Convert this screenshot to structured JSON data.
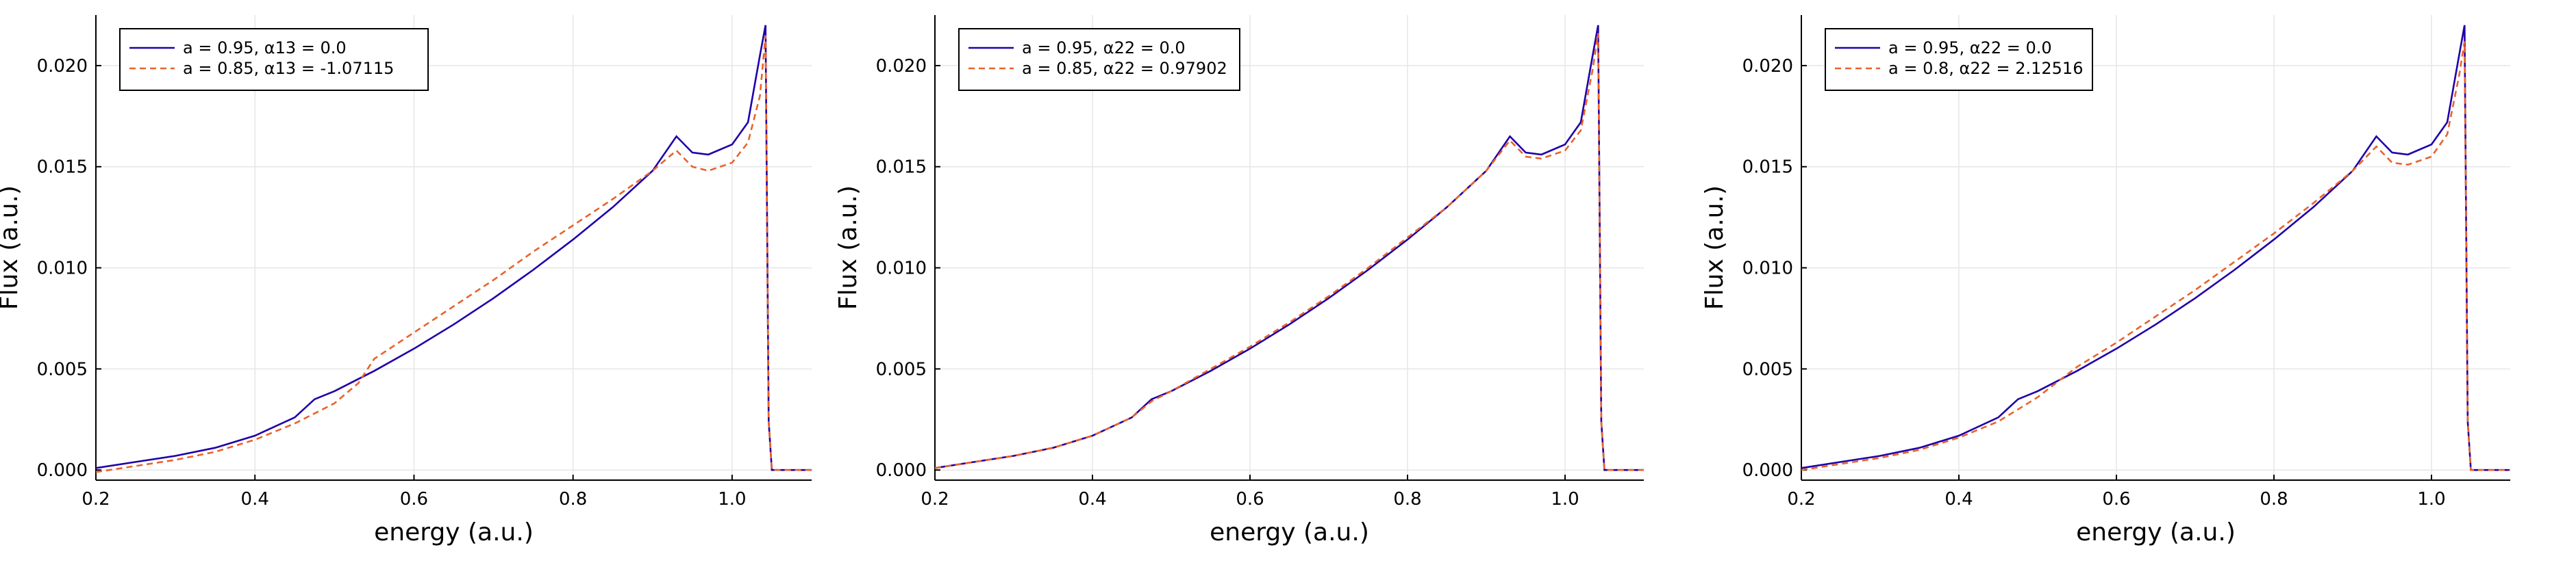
{
  "chart_data": [
    {
      "type": "line",
      "xlabel": "energy (a.u.)",
      "ylabel": "Flux (a.u.)",
      "xlim": [
        0.2,
        1.1
      ],
      "ylim": [
        -0.0005,
        0.0225
      ],
      "xticks": [
        "0.2",
        "0.4",
        "0.6",
        "0.8",
        "1.0"
      ],
      "yticks": [
        "0.000",
        "0.005",
        "0.010",
        "0.015",
        "0.020"
      ],
      "grid": true,
      "legend_position": "top-left",
      "series": [
        {
          "name": "a = 0.95, α13 = 0.0",
          "color": "#1f00a8",
          "style": "solid",
          "points": [
            [
              0.2,
              0.0001
            ],
            [
              0.25,
              0.0004
            ],
            [
              0.3,
              0.0007
            ],
            [
              0.35,
              0.0011
            ],
            [
              0.4,
              0.0017
            ],
            [
              0.45,
              0.0026
            ],
            [
              0.475,
              0.0035
            ],
            [
              0.5,
              0.0039
            ],
            [
              0.55,
              0.0049
            ],
            [
              0.6,
              0.006
            ],
            [
              0.65,
              0.0072
            ],
            [
              0.7,
              0.0085
            ],
            [
              0.75,
              0.0099
            ],
            [
              0.8,
              0.0114
            ],
            [
              0.85,
              0.013
            ],
            [
              0.9,
              0.0148
            ],
            [
              0.93,
              0.0165
            ],
            [
              0.95,
              0.0157
            ],
            [
              0.97,
              0.0156
            ],
            [
              1.0,
              0.0161
            ],
            [
              1.02,
              0.0172
            ],
            [
              1.035,
              0.0205
            ],
            [
              1.042,
              0.022
            ],
            [
              1.046,
              0.0024
            ],
            [
              1.05,
              0.0
            ],
            [
              1.1,
              0.0
            ]
          ]
        },
        {
          "name": "a = 0.85, α13 = -1.07115",
          "color": "#e8632b",
          "style": "dashed",
          "points": [
            [
              0.2,
              -0.0001
            ],
            [
              0.25,
              0.0002
            ],
            [
              0.3,
              0.0005
            ],
            [
              0.35,
              0.0009
            ],
            [
              0.4,
              0.0015
            ],
            [
              0.45,
              0.0023
            ],
            [
              0.5,
              0.0033
            ],
            [
              0.53,
              0.0043
            ],
            [
              0.55,
              0.0055
            ],
            [
              0.6,
              0.0068
            ],
            [
              0.65,
              0.0081
            ],
            [
              0.7,
              0.0094
            ],
            [
              0.75,
              0.0108
            ],
            [
              0.8,
              0.0121
            ],
            [
              0.85,
              0.0134
            ],
            [
              0.9,
              0.0148
            ],
            [
              0.93,
              0.0158
            ],
            [
              0.95,
              0.015
            ],
            [
              0.97,
              0.0148
            ],
            [
              1.0,
              0.0152
            ],
            [
              1.02,
              0.0162
            ],
            [
              1.035,
              0.0185
            ],
            [
              1.042,
              0.0215
            ],
            [
              1.046,
              0.0024
            ],
            [
              1.05,
              0.0
            ],
            [
              1.1,
              0.0
            ]
          ]
        }
      ]
    },
    {
      "type": "line",
      "xlabel": "energy (a.u.)",
      "ylabel": "Flux (a.u.)",
      "xlim": [
        0.2,
        1.1
      ],
      "ylim": [
        -0.0005,
        0.0225
      ],
      "xticks": [
        "0.2",
        "0.4",
        "0.6",
        "0.8",
        "1.0"
      ],
      "yticks": [
        "0.000",
        "0.005",
        "0.010",
        "0.015",
        "0.020"
      ],
      "grid": true,
      "legend_position": "top-left",
      "series": [
        {
          "name": "a = 0.95, α22 = 0.0",
          "color": "#1f00a8",
          "style": "solid",
          "points": [
            [
              0.2,
              0.0001
            ],
            [
              0.25,
              0.0004
            ],
            [
              0.3,
              0.0007
            ],
            [
              0.35,
              0.0011
            ],
            [
              0.4,
              0.0017
            ],
            [
              0.45,
              0.0026
            ],
            [
              0.475,
              0.0035
            ],
            [
              0.5,
              0.0039
            ],
            [
              0.55,
              0.0049
            ],
            [
              0.6,
              0.006
            ],
            [
              0.65,
              0.0072
            ],
            [
              0.7,
              0.0085
            ],
            [
              0.75,
              0.0099
            ],
            [
              0.8,
              0.0114
            ],
            [
              0.85,
              0.013
            ],
            [
              0.9,
              0.0148
            ],
            [
              0.93,
              0.0165
            ],
            [
              0.95,
              0.0157
            ],
            [
              0.97,
              0.0156
            ],
            [
              1.0,
              0.0161
            ],
            [
              1.02,
              0.0172
            ],
            [
              1.035,
              0.0205
            ],
            [
              1.042,
              0.022
            ],
            [
              1.046,
              0.0024
            ],
            [
              1.05,
              0.0
            ],
            [
              1.1,
              0.0
            ]
          ]
        },
        {
          "name": "a = 0.85, α22 = 0.97902",
          "color": "#e8632b",
          "style": "dashed",
          "points": [
            [
              0.2,
              0.0001
            ],
            [
              0.25,
              0.0004
            ],
            [
              0.3,
              0.0007
            ],
            [
              0.35,
              0.0011
            ],
            [
              0.4,
              0.0017
            ],
            [
              0.45,
              0.0026
            ],
            [
              0.475,
              0.0034
            ],
            [
              0.5,
              0.0039
            ],
            [
              0.55,
              0.005
            ],
            [
              0.6,
              0.0061
            ],
            [
              0.65,
              0.0073
            ],
            [
              0.7,
              0.0086
            ],
            [
              0.75,
              0.01
            ],
            [
              0.8,
              0.0115
            ],
            [
              0.85,
              0.013
            ],
            [
              0.9,
              0.0148
            ],
            [
              0.93,
              0.0163
            ],
            [
              0.95,
              0.0155
            ],
            [
              0.97,
              0.0154
            ],
            [
              1.0,
              0.0158
            ],
            [
              1.02,
              0.0168
            ],
            [
              1.035,
              0.0198
            ],
            [
              1.042,
              0.0216
            ],
            [
              1.046,
              0.0024
            ],
            [
              1.05,
              0.0
            ],
            [
              1.1,
              0.0
            ]
          ]
        }
      ]
    },
    {
      "type": "line",
      "xlabel": "energy (a.u.)",
      "ylabel": "Flux (a.u.)",
      "xlim": [
        0.2,
        1.1
      ],
      "ylim": [
        -0.0005,
        0.0225
      ],
      "xticks": [
        "0.2",
        "0.4",
        "0.6",
        "0.8",
        "1.0"
      ],
      "yticks": [
        "0.000",
        "0.005",
        "0.010",
        "0.015",
        "0.020"
      ],
      "grid": true,
      "legend_position": "top-left",
      "series": [
        {
          "name": "a = 0.95, α22 = 0.0",
          "color": "#1f00a8",
          "style": "solid",
          "points": [
            [
              0.2,
              0.0001
            ],
            [
              0.25,
              0.0004
            ],
            [
              0.3,
              0.0007
            ],
            [
              0.35,
              0.0011
            ],
            [
              0.4,
              0.0017
            ],
            [
              0.45,
              0.0026
            ],
            [
              0.475,
              0.0035
            ],
            [
              0.5,
              0.0039
            ],
            [
              0.55,
              0.0049
            ],
            [
              0.6,
              0.006
            ],
            [
              0.65,
              0.0072
            ],
            [
              0.7,
              0.0085
            ],
            [
              0.75,
              0.0099
            ],
            [
              0.8,
              0.0114
            ],
            [
              0.85,
              0.013
            ],
            [
              0.9,
              0.0148
            ],
            [
              0.93,
              0.0165
            ],
            [
              0.95,
              0.0157
            ],
            [
              0.97,
              0.0156
            ],
            [
              1.0,
              0.0161
            ],
            [
              1.02,
              0.0172
            ],
            [
              1.035,
              0.0205
            ],
            [
              1.042,
              0.022
            ],
            [
              1.046,
              0.0024
            ],
            [
              1.05,
              0.0
            ],
            [
              1.1,
              0.0
            ]
          ]
        },
        {
          "name": "a = 0.8, α22 = 2.12516",
          "color": "#e8632b",
          "style": "dashed",
          "points": [
            [
              0.2,
              0.0
            ],
            [
              0.25,
              0.0003
            ],
            [
              0.3,
              0.0006
            ],
            [
              0.35,
              0.001
            ],
            [
              0.4,
              0.0016
            ],
            [
              0.45,
              0.0024
            ],
            [
              0.5,
              0.0036
            ],
            [
              0.52,
              0.0042
            ],
            [
              0.55,
              0.0051
            ],
            [
              0.6,
              0.0063
            ],
            [
              0.65,
              0.0076
            ],
            [
              0.7,
              0.0089
            ],
            [
              0.75,
              0.0103
            ],
            [
              0.8,
              0.0117
            ],
            [
              0.85,
              0.0132
            ],
            [
              0.9,
              0.0148
            ],
            [
              0.93,
              0.016
            ],
            [
              0.95,
              0.0152
            ],
            [
              0.97,
              0.0151
            ],
            [
              1.0,
              0.0155
            ],
            [
              1.02,
              0.0166
            ],
            [
              1.035,
              0.0195
            ],
            [
              1.042,
              0.0212
            ],
            [
              1.046,
              0.0024
            ],
            [
              1.05,
              0.0
            ],
            [
              1.1,
              0.0
            ]
          ]
        }
      ]
    }
  ]
}
